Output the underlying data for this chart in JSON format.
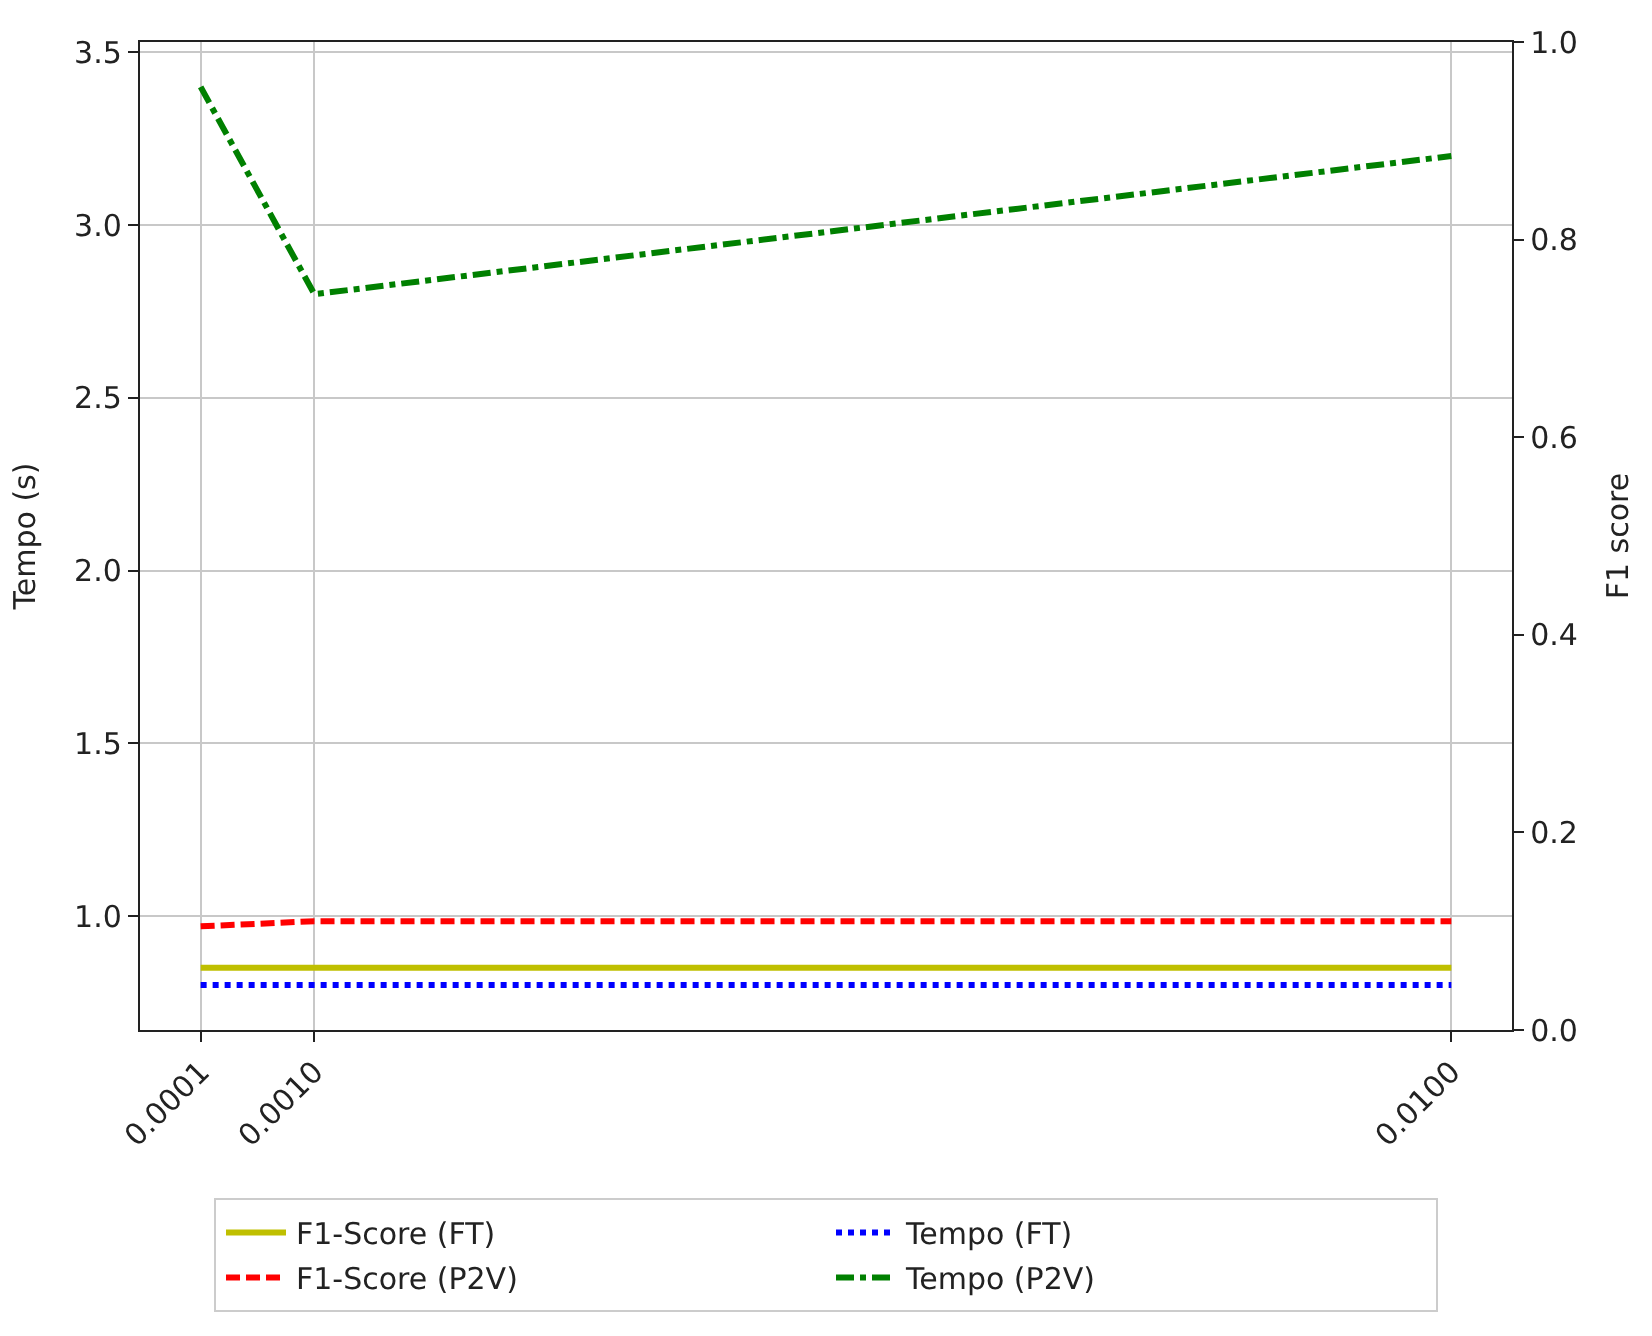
{
  "chart_data": {
    "type": "line",
    "ylabel": "Tempo (s)",
    "y2label": "F1 score",
    "x": [
      0.0001,
      0.001,
      0.01
    ],
    "xlim": [
      -0.00038,
      0.01048
    ],
    "xticks": [
      {
        "value": 0.0001,
        "label": "0.0001"
      },
      {
        "value": 0.001,
        "label": "0.0010"
      },
      {
        "value": 0.01,
        "label": "0.0100"
      }
    ],
    "ylim": [
      0.67,
      3.53
    ],
    "yticks": [
      {
        "value": 1.0,
        "label": "1.0"
      },
      {
        "value": 1.5,
        "label": "1.5"
      },
      {
        "value": 2.0,
        "label": "2.0"
      },
      {
        "value": 2.5,
        "label": "2.5"
      },
      {
        "value": 3.0,
        "label": "3.0"
      },
      {
        "value": 3.5,
        "label": "3.5"
      }
    ],
    "y2lim": [
      0,
      1
    ],
    "y2ticks": [
      {
        "value": 0,
        "label": "0.0"
      },
      {
        "value": 0.2,
        "label": "0.2"
      },
      {
        "value": 0.4,
        "label": "0.4"
      },
      {
        "value": 0.6,
        "label": "0.6"
      },
      {
        "value": 0.8,
        "label": "0.8"
      },
      {
        "value": 1,
        "label": "1.0"
      }
    ],
    "series": [
      {
        "name": "F1-Score (FT)",
        "color": "#bfbf00",
        "line_style": "solid",
        "values": [
          0.85,
          0.85,
          0.85
        ]
      },
      {
        "name": "F1-Score (P2V)",
        "color": "#ff0000",
        "line_style": "dashed",
        "values": [
          0.97,
          0.985,
          0.985
        ]
      },
      {
        "name": "Tempo (FT)",
        "color": "#0000ff",
        "line_style": "dotted",
        "values": [
          0.8,
          0.8,
          0.8
        ]
      },
      {
        "name": "Tempo (P2V)",
        "color": "#008000",
        "line_style": "dashdot",
        "values": [
          3.4,
          2.8,
          3.2
        ]
      }
    ],
    "grid": true,
    "legend": "bottom",
    "marker": "none"
  }
}
